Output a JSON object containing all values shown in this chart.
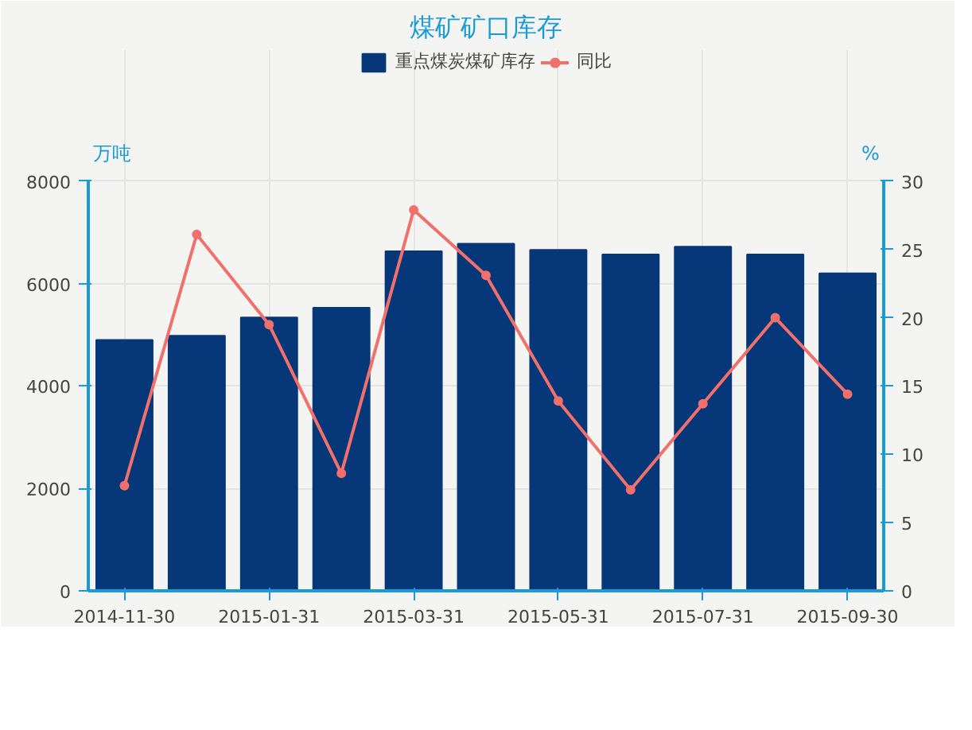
{
  "chart_data": {
    "type": "bar",
    "title": "煤矿矿口库存",
    "ylabel": "万吨",
    "y2label": "%",
    "categories": [
      "2014-11-30",
      null,
      "2015-01-31",
      null,
      "2015-03-31",
      null,
      "2015-05-31",
      null,
      "2015-07-31",
      null,
      "2015-09-30"
    ],
    "series": [
      {
        "name": "重点煤炭煤矿库存",
        "color": "#063778",
        "values": [
          4900,
          4980,
          5340,
          5530,
          6630,
          6780,
          6660,
          6570,
          6720,
          6570,
          6200
        ]
      },
      {
        "name": "同比",
        "type": "line",
        "axis": "y2",
        "color": "#f2706b",
        "marker": "circle",
        "values": [
          7.7,
          26.1,
          19.5,
          8.6,
          27.9,
          23.1,
          13.9,
          7.4,
          13.7,
          20.0,
          14.4
        ]
      }
    ],
    "ylim": [
      0,
      8000
    ],
    "yticks": [
      0,
      2000,
      4000,
      6000,
      8000
    ],
    "y2lim": [
      0,
      30
    ],
    "y2ticks": [
      0,
      5,
      10,
      15,
      20,
      25,
      30
    ],
    "grid": true,
    "legend": "top"
  }
}
